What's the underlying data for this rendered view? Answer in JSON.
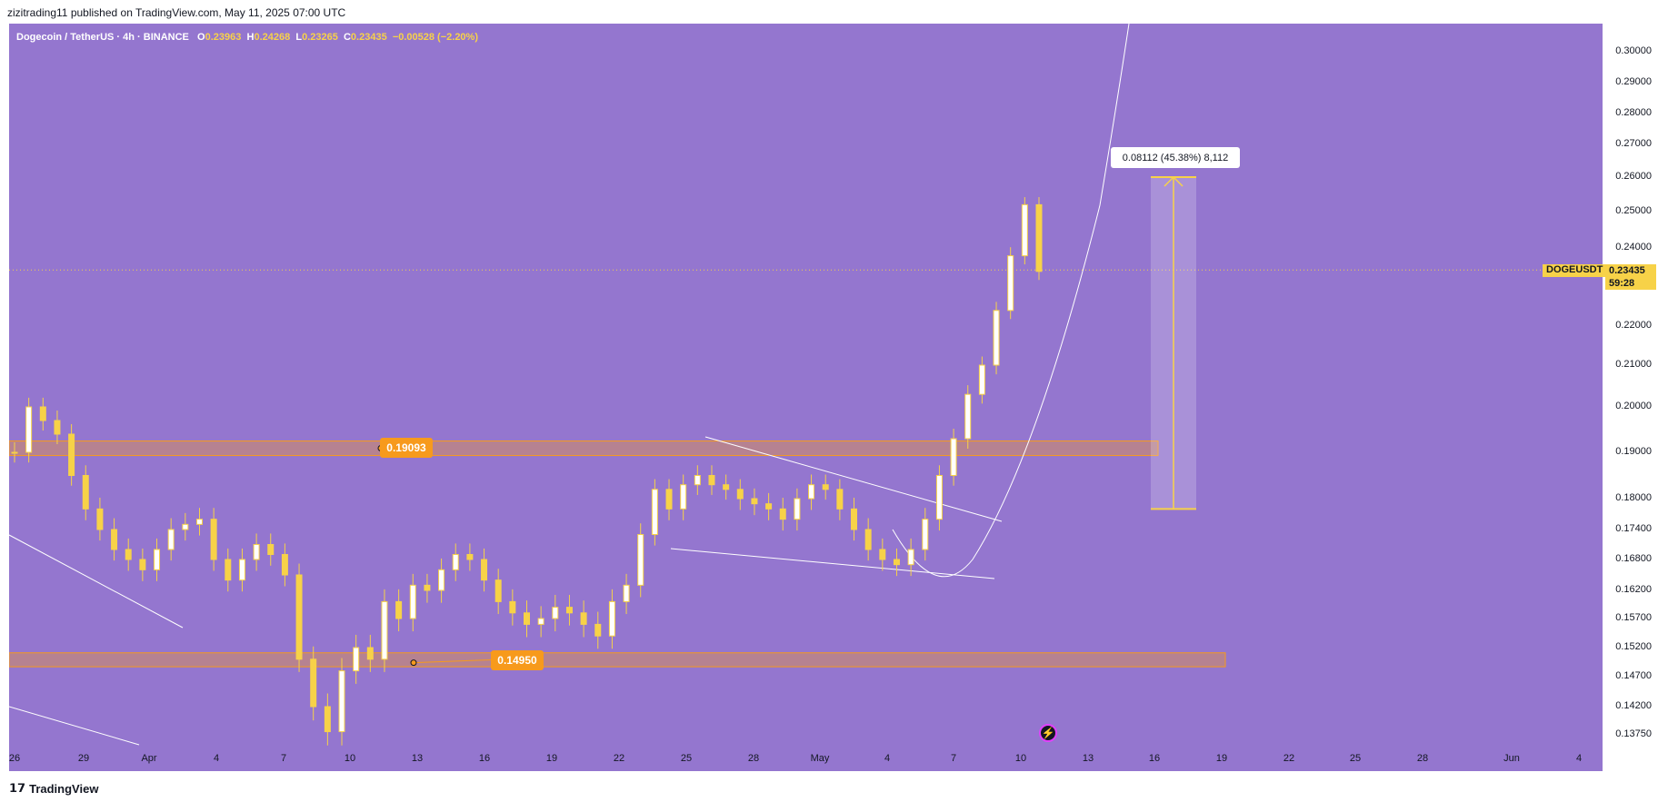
{
  "header": {
    "publisher": "zizitrading11 published on TradingView.com, May 11, 2025 07:00 UTC"
  },
  "symbol": {
    "name": "Dogecoin / TetherUS · 4h · BINANCE",
    "o_label": "O",
    "o": "0.23963",
    "h_label": "H",
    "h": "0.24268",
    "l_label": "L",
    "l": "0.23265",
    "c_label": "C",
    "c": "0.23435",
    "change": "−0.00528 (−2.20%)"
  },
  "price_axis": [
    "0.30000",
    "0.29000",
    "0.28000",
    "0.27000",
    "0.26000",
    "0.25000",
    "0.24000",
    "0.22000",
    "0.21000",
    "0.20000",
    "0.19000",
    "0.18000",
    "0.17400",
    "0.16800",
    "0.16200",
    "0.15700",
    "0.15200",
    "0.14700",
    "0.14200",
    "0.13750"
  ],
  "time_axis": [
    "26",
    "29",
    "Apr",
    "4",
    "7",
    "10",
    "13",
    "16",
    "19",
    "22",
    "25",
    "28",
    "May",
    "4",
    "7",
    "10",
    "13",
    "16",
    "19",
    "22",
    "25",
    "28",
    "Jun",
    "4"
  ],
  "current_price": {
    "ticker": "DOGEUSDT",
    "price": "0.23435",
    "countdown": "59:28"
  },
  "measure_label": "0.08112 (45.38%) 8,112",
  "zones": {
    "upper": "0.19093",
    "lower": "0.14950"
  },
  "footer": {
    "logo_mark": "𝟭𝟳",
    "brand": "TradingView"
  },
  "colors": {
    "chart_bg": "#9476cf",
    "candle": "#f7d248",
    "zone": "#f79a1c",
    "measure": "#f7d248"
  },
  "chart_data": {
    "type": "candlestick",
    "symbol": "DOGEUSDT",
    "timeframe": "4h",
    "close_series": [
      0.19,
      0.2,
      0.197,
      0.194,
      0.185,
      0.178,
      0.174,
      0.17,
      0.168,
      0.166,
      0.17,
      0.174,
      0.175,
      0.176,
      0.168,
      0.164,
      0.168,
      0.171,
      0.169,
      0.165,
      0.15,
      0.142,
      0.138,
      0.148,
      0.152,
      0.15,
      0.16,
      0.157,
      0.163,
      0.162,
      0.166,
      0.169,
      0.168,
      0.164,
      0.16,
      0.158,
      0.156,
      0.157,
      0.159,
      0.158,
      0.156,
      0.154,
      0.16,
      0.163,
      0.173,
      0.182,
      0.178,
      0.183,
      0.185,
      0.183,
      0.182,
      0.18,
      0.179,
      0.178,
      0.176,
      0.18,
      0.183,
      0.182,
      0.178,
      0.174,
      0.17,
      0.168,
      0.167,
      0.17,
      0.176,
      0.185,
      0.193,
      0.203,
      0.21,
      0.224,
      0.238,
      0.252,
      0.234
    ],
    "ylim": [
      0.1375,
      0.3
    ],
    "levels": [
      0.19093,
      0.1495
    ],
    "measure": {
      "from": 0.178,
      "to": 0.26,
      "change": "0.08112",
      "percent": "45.38%",
      "ticks": "8,112"
    }
  }
}
